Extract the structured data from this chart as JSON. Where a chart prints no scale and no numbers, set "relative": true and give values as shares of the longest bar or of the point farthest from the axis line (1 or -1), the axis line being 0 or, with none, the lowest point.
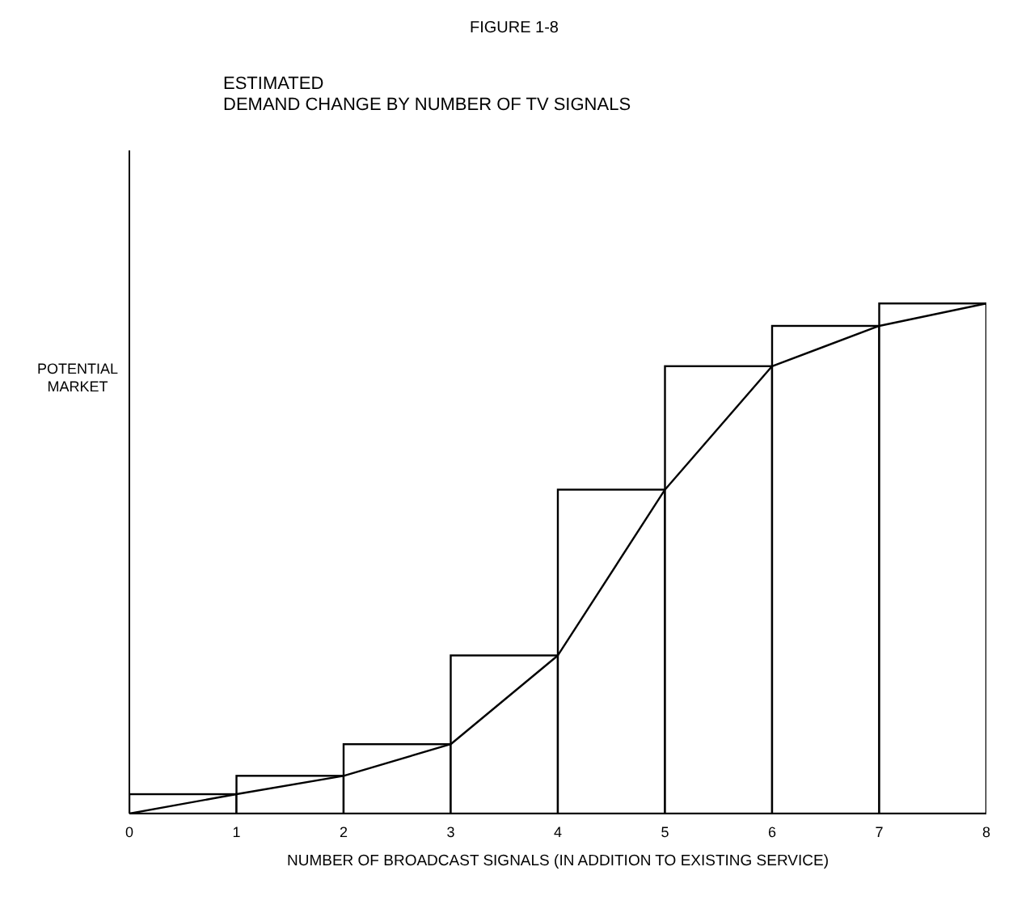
{
  "chart_data": {
    "type": "histogram",
    "title": "FIGURE 1-8",
    "subtitle": "ESTIMATED\nDEMAND CHANGE BY NUMBER OF TV SIGNALS",
    "xlabel": "NUMBER OF BROADCAST SIGNALS (IN ADDITION TO EXISTING SERVICE)",
    "ylabel": "POTENTIAL\nMARKET",
    "relative": true,
    "bins": [
      0,
      1,
      2,
      3,
      4,
      5,
      6,
      7,
      8
    ],
    "values": [
      0.038,
      0.074,
      0.136,
      0.31,
      0.635,
      0.877,
      0.956,
      1
    ],
    "color": "#000000",
    "series": [
      {
        "type": "line",
        "color": "#000000",
        "x": [
          0,
          1,
          2,
          3,
          4,
          5,
          6,
          7,
          8
        ],
        "values": [
          0,
          0.038,
          0.074,
          0.136,
          0.31,
          0.635,
          0.877,
          0.956,
          1
        ]
      }
    ],
    "xlim": [
      0,
      8
    ],
    "xticks": [
      0,
      1,
      2,
      3,
      4,
      5,
      6,
      7,
      8
    ],
    "marker": "none",
    "grid": false
  }
}
